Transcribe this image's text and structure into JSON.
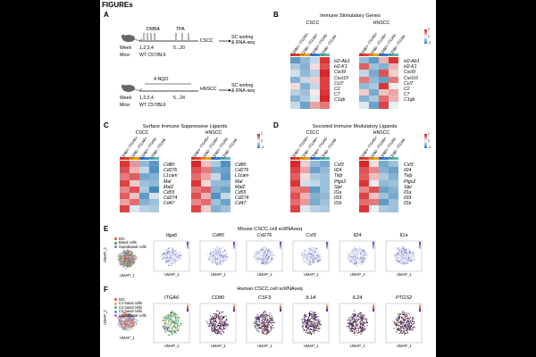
{
  "page_title": "FIGUREs",
  "panels": {
    "A": {
      "label": "A",
      "flow1": {
        "treatment1": "DMBA",
        "treatment2": "TPA",
        "week_label": "Week",
        "weeks_a": "1,2,3,4",
        "weeks_b": "5...20",
        "mice_label": "Mice:",
        "mice": "WT C57/BL6",
        "tumor": "CSCC",
        "output": "SC sorting\n& RNA-seq"
      },
      "flow2": {
        "treatment": "4-NQO",
        "week_label": "Week",
        "weeks_a": "1,2,3,4",
        "weeks_b": "5...24",
        "mice_label": "Mice:",
        "mice": "WT C57/BL6",
        "tumor": "HNSCC",
        "output": "SC sorting\n& RNA-seq"
      }
    },
    "B": {
      "label": "B",
      "title": "Immune Stimulatory Genes",
      "groups": [
        "CSCC",
        "HNSCC"
      ],
      "columns": [
        "CD80+ ITGA6+",
        "CD80- ITGA6+",
        "CD80+ ITGA6-",
        "CD80- ITGA6-"
      ],
      "genes": [
        "H2-Ab1",
        "H2-K1",
        "Cxcl9",
        "Cxcl10",
        "Ccl7",
        "C2",
        "C7",
        "C1qb"
      ],
      "heatmaps": [
        [
          [
            -1.2,
            -0.8,
            -0.4,
            1.4
          ],
          [
            -0.6,
            -0.9,
            0.2,
            1.2
          ],
          [
            -0.3,
            -0.8,
            -0.5,
            1.5
          ],
          [
            -0.9,
            -0.4,
            0.3,
            1.3
          ],
          [
            0.2,
            -0.9,
            -0.4,
            1.3
          ],
          [
            -0.5,
            -0.7,
            0.1,
            1.4
          ],
          [
            -0.9,
            -0.6,
            -0.2,
            1.5
          ],
          [
            -0.4,
            -1.1,
            0.6,
            0.9
          ]
        ],
        [
          [
            -0.8,
            -1.2,
            0.5,
            1.4
          ],
          [
            1.1,
            -0.7,
            -0.9,
            0.5
          ],
          [
            -0.4,
            -1.0,
            1.2,
            0.3
          ],
          [
            0.9,
            -0.8,
            -1.1,
            0.9
          ],
          [
            -0.8,
            -0.6,
            1.4,
            0.1
          ],
          [
            0.3,
            -1.0,
            0.4,
            0.6
          ],
          [
            -0.9,
            -0.6,
            1.0,
            0.5
          ],
          [
            -0.2,
            -1.1,
            1.3,
            -0.1
          ]
        ]
      ],
      "legend": {
        "max": "2",
        "mid": "0",
        "min": "-2"
      }
    },
    "C": {
      "label": "C",
      "title": "Surface Immune Suppressive Ligands",
      "groups": [
        "CSCC",
        "HNSCC"
      ],
      "columns": [
        "CD80+ ITGA6+",
        "CD80- ITGA6+",
        "CD80+ ITGA6-",
        "CD80- ITGA6-"
      ],
      "genes": [
        "Cd80",
        "Cd276",
        "L1cam",
        "Mal",
        "Mal2",
        "Cd55",
        "Cd274",
        "Cd47"
      ],
      "heatmaps": [
        [
          [
            1.4,
            0.7,
            -0.8,
            -1.2
          ],
          [
            1.2,
            0.5,
            -0.4,
            -1.3
          ],
          [
            0.9,
            1.1,
            -1.0,
            -0.9
          ],
          [
            1.3,
            0.3,
            -0.7,
            -0.8
          ],
          [
            0.8,
            1.2,
            -0.6,
            -1.4
          ],
          [
            1.1,
            0.4,
            -1.2,
            -0.3
          ],
          [
            0.6,
            1.0,
            -0.9,
            -0.7
          ],
          [
            1.3,
            -0.2,
            -0.5,
            -0.6
          ]
        ],
        [
          [
            1.5,
            0.4,
            -0.6,
            -1.3
          ],
          [
            1.2,
            0.9,
            -1.0,
            -1.1
          ],
          [
            1.0,
            0.6,
            -0.4,
            -1.2
          ],
          [
            1.4,
            0.2,
            -0.8,
            -0.8
          ],
          [
            0.9,
            1.1,
            -0.9,
            -1.1
          ],
          [
            1.2,
            0.5,
            -1.3,
            -0.4
          ],
          [
            0.8,
            1.0,
            -0.7,
            -1.1
          ],
          [
            1.3,
            0.3,
            -0.9,
            -0.7
          ]
        ]
      ],
      "legend": {
        "max": "2",
        "mid": "0",
        "min": "-2"
      }
    },
    "D": {
      "label": "D",
      "title": "Secreted Immune Modulatory Ligands",
      "groups": [
        "CSCC",
        "HNSCC"
      ],
      "columns": [
        "CD80+ ITGA6+",
        "CD80- ITGA6+",
        "CD80+ ITGA6-",
        "CD80- ITGA6-"
      ],
      "genes_cscc": [
        "Csf3",
        "Il24",
        "Tslp",
        "Ptgs2",
        "Slpi",
        "Il1a",
        "Il33",
        "Il1b"
      ],
      "genes_hnscc": [
        "Csf3",
        "Il24",
        "Tslp",
        "Ptgs2",
        "Slpi",
        "Il1a",
        "Il33",
        "Il1b"
      ],
      "heatmaps": [
        [
          [
            1.5,
            0.3,
            -0.8,
            -1.0
          ],
          [
            1.3,
            0.6,
            -1.1,
            -0.8
          ],
          [
            1.1,
            0.2,
            -0.6,
            -0.7
          ],
          [
            1.4,
            -0.3,
            -0.4,
            -0.7
          ],
          [
            0.9,
            1.0,
            -1.2,
            -0.7
          ],
          [
            1.2,
            0.5,
            -0.9,
            -0.8
          ],
          [
            1.0,
            0.7,
            -1.0,
            -0.7
          ],
          [
            1.3,
            -0.2,
            -0.5,
            -0.6
          ]
        ],
        [
          [
            1.5,
            0.2,
            -1.0,
            -0.7
          ],
          [
            1.2,
            0.8,
            -0.9,
            -1.1
          ],
          [
            1.1,
            0.4,
            -0.6,
            -0.9
          ],
          [
            1.4,
            0.1,
            -0.8,
            -0.7
          ],
          [
            0.8,
            1.2,
            -1.1,
            -0.9
          ],
          [
            1.3,
            0.4,
            -0.7,
            -1.0
          ],
          [
            1.0,
            0.9,
            -1.2,
            -0.7
          ],
          [
            1.4,
            -0.1,
            -0.6,
            -0.7
          ]
        ]
      ],
      "legend": {
        "max": "2",
        "mid": "0",
        "min": "-2"
      }
    },
    "E": {
      "label": "E",
      "title": "Mouse CSCC cell scRNAseq",
      "legend": [
        "tSC",
        "Basal cells",
        "Suprabasal cells"
      ],
      "legend_colors": [
        "#e8514a",
        "#4a9a3e",
        "#6f7fd6"
      ],
      "genes": [
        "Itga6",
        "Cd80",
        "Cd276",
        "Csf3",
        "Il24",
        "Il1a"
      ],
      "axis_x": "UMAP_1",
      "axis_y": "UMAP_2"
    },
    "F": {
      "label": "F",
      "title": "Human CSCC cell scRNAseq",
      "legend": [
        "tSC",
        "C1 basal cells",
        "C2 basal cells",
        "C3 basal cells",
        "Suprabasal cells"
      ],
      "legend_colors": [
        "#e8514a",
        "#f0a33a",
        "#45b39d",
        "#5b8fd6",
        "#b26dd6"
      ],
      "genes": [
        "ITGA6",
        "CD80",
        "CSF3",
        "IL1A",
        "IL24",
        "PTGS2"
      ],
      "axis_x": "UMAP_1",
      "axis_y": "UMAP_2"
    }
  },
  "colors": {
    "high": "#d7191c",
    "mid": "#f7f7f7",
    "low": "#2c7bb6",
    "group_bar": [
      "#e63b2e",
      "#f39c12",
      "#3a7bd5",
      "#5ab4ac"
    ]
  }
}
